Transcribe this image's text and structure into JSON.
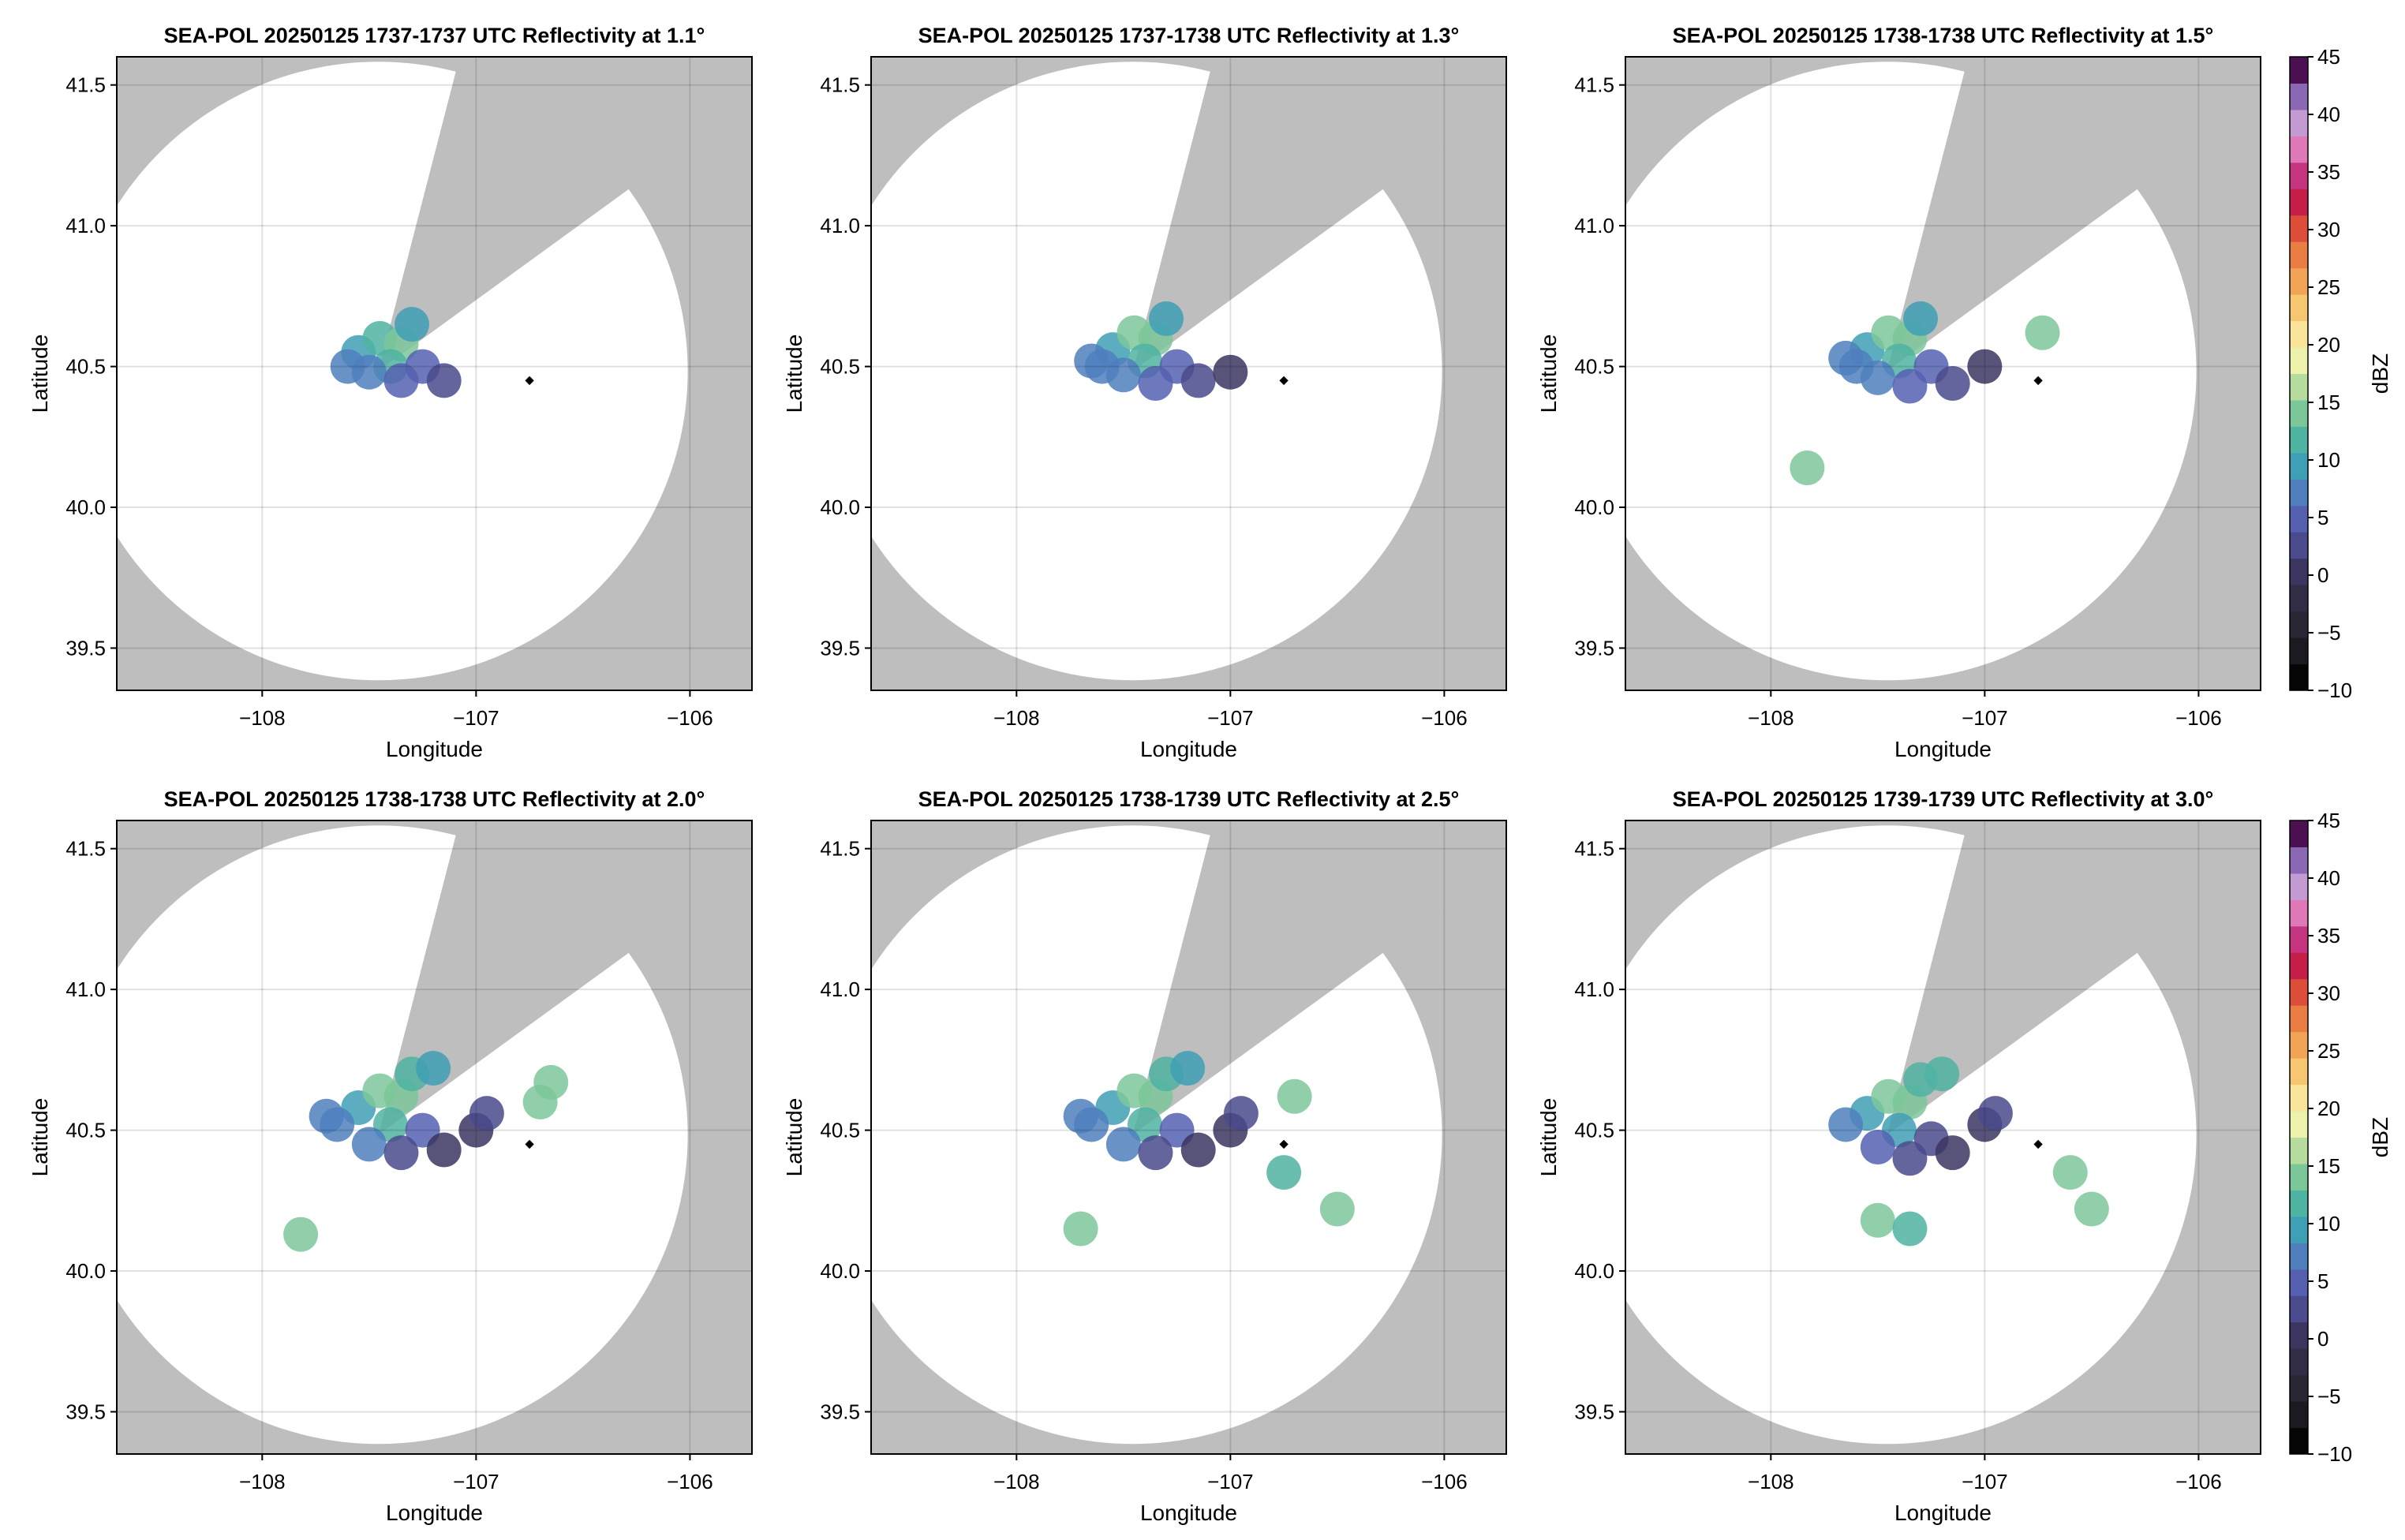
{
  "chart_data": [
    {
      "type": "map",
      "title": "SEA-POL 20250125 1737-1737 UTC Reflectivity at 1.1°",
      "xlabel": "Longitude",
      "ylabel": "Latitude",
      "xlim": [
        -108.68,
        -105.71
      ],
      "ylim": [
        39.35,
        41.6
      ],
      "xticks": [
        {
          "value": -108,
          "label": "−108"
        },
        {
          "value": -107,
          "label": "−107"
        },
        {
          "value": -106,
          "label": "−106"
        }
      ],
      "yticks": [
        39.5,
        {
          "value": 40,
          "label": "40.0"
        },
        40.5,
        {
          "value": 41,
          "label": "41.0"
        },
        41.5
      ],
      "grid": true,
      "echoes": {
        "x": [
          -107.55,
          -107.45,
          -107.35,
          -107.3,
          -107.6,
          -107.4,
          -107.25,
          -107.5,
          -107.35,
          -107.15
        ],
        "y": [
          40.55,
          40.6,
          40.58,
          40.65,
          40.5,
          40.5,
          40.5,
          40.48,
          40.45,
          40.45
        ],
        "values": [
          9,
          12,
          14,
          10,
          8,
          11,
          4,
          7,
          6,
          2
        ]
      },
      "marker": {
        "x": -106.75,
        "y": 40.45
      }
    },
    {
      "type": "map",
      "title": "SEA-POL 20250125 1737-1738 UTC Reflectivity at 1.3°",
      "xlabel": "Longitude",
      "ylabel": "Latitude",
      "xlim": [
        -108.68,
        -105.71
      ],
      "ylim": [
        39.35,
        41.6
      ],
      "xticks": [
        {
          "value": -108,
          "label": "−108"
        },
        {
          "value": -107,
          "label": "−107"
        },
        {
          "value": -106,
          "label": "−106"
        }
      ],
      "yticks": [
        39.5,
        {
          "value": 40,
          "label": "40.0"
        },
        40.5,
        {
          "value": 41,
          "label": "41.0"
        },
        41.5
      ],
      "grid": true,
      "echoes": {
        "x": [
          -107.55,
          -107.45,
          -107.35,
          -107.3,
          -107.6,
          -107.4,
          -107.25,
          -107.5,
          -107.35,
          -107.15,
          -107.65,
          -107.0
        ],
        "y": [
          40.56,
          40.62,
          40.6,
          40.67,
          40.5,
          40.52,
          40.5,
          40.47,
          40.44,
          40.45,
          40.52,
          40.48
        ],
        "values": [
          9,
          13,
          15,
          10,
          8,
          11,
          4,
          7,
          6,
          2,
          8,
          1
        ]
      },
      "marker": {
        "x": -106.75,
        "y": 40.45
      }
    },
    {
      "type": "map",
      "title": "SEA-POL 20250125 1738-1738 UTC Reflectivity at 1.5°",
      "xlabel": "Longitude",
      "ylabel": "Latitude",
      "xlim": [
        -108.68,
        -105.71
      ],
      "ylim": [
        39.35,
        41.6
      ],
      "xticks": [
        {
          "value": -108,
          "label": "−108"
        },
        {
          "value": -107,
          "label": "−107"
        },
        {
          "value": -106,
          "label": "−106"
        }
      ],
      "yticks": [
        39.5,
        {
          "value": 40,
          "label": "40.0"
        },
        40.5,
        {
          "value": 41,
          "label": "41.0"
        },
        41.5
      ],
      "grid": true,
      "echoes": {
        "x": [
          -107.55,
          -107.45,
          -107.35,
          -107.3,
          -107.6,
          -107.4,
          -107.25,
          -107.5,
          -107.35,
          -107.15,
          -107.65,
          -107.0,
          -107.83,
          -106.73
        ],
        "y": [
          40.56,
          40.62,
          40.6,
          40.67,
          40.5,
          40.52,
          40.5,
          40.46,
          40.43,
          40.44,
          40.53,
          40.5,
          40.14,
          40.62
        ],
        "values": [
          9,
          13,
          15,
          10,
          8,
          11,
          4,
          7,
          6,
          2,
          8,
          1,
          14,
          13
        ]
      },
      "marker": {
        "x": -106.75,
        "y": 40.45
      },
      "colorbar": {
        "label": "dBZ",
        "lim": [
          -10,
          45
        ],
        "ticks": [
          {
            "value": -10,
            "label": "−10"
          },
          {
            "value": -5,
            "label": "−5"
          },
          0,
          5,
          10,
          15,
          20,
          25,
          30,
          35,
          40,
          45
        ],
        "colors": [
          "#050505",
          "#1c1a20",
          "#2b2633",
          "#332c47",
          "#3b3560",
          "#4a4a8c",
          "#5560b0",
          "#4f7fbd",
          "#3f9fb5",
          "#4fb3a2",
          "#7cc79a",
          "#b5dc9c",
          "#ecf1ab",
          "#f9e49a",
          "#f6c670",
          "#f1a455",
          "#ea7d44",
          "#dc4d3a",
          "#c61f4a",
          "#c5347e",
          "#df78b6",
          "#c49ad2",
          "#8b68b3",
          "#4a1052"
        ]
      }
    },
    {
      "type": "map",
      "title": "SEA-POL 20250125 1738-1738 UTC Reflectivity at 2.0°",
      "xlabel": "Longitude",
      "ylabel": "Latitude",
      "xlim": [
        -108.68,
        -105.71
      ],
      "ylim": [
        39.35,
        41.6
      ],
      "xticks": [
        {
          "value": -108,
          "label": "−108"
        },
        {
          "value": -107,
          "label": "−107"
        },
        {
          "value": -106,
          "label": "−106"
        }
      ],
      "yticks": [
        39.5,
        {
          "value": 40,
          "label": "40.0"
        },
        40.5,
        {
          "value": 41,
          "label": "41.0"
        },
        41.5
      ],
      "grid": true,
      "echoes": {
        "x": [
          -107.55,
          -107.45,
          -107.35,
          -107.3,
          -107.65,
          -107.4,
          -107.25,
          -107.5,
          -107.35,
          -107.15,
          -107.7,
          -107.2,
          -107.0,
          -106.95,
          -106.7,
          -106.65,
          -107.82
        ],
        "y": [
          40.58,
          40.64,
          40.62,
          40.7,
          40.52,
          40.52,
          40.5,
          40.45,
          40.42,
          40.43,
          40.55,
          40.72,
          40.5,
          40.56,
          40.6,
          40.67,
          40.13
        ],
        "values": [
          9,
          13,
          15,
          11,
          8,
          11,
          4,
          7,
          3,
          1,
          8,
          10,
          1,
          2,
          15,
          13,
          13
        ]
      },
      "marker": {
        "x": -106.75,
        "y": 40.45
      }
    },
    {
      "type": "map",
      "title": "SEA-POL 20250125 1738-1739 UTC Reflectivity at 2.5°",
      "xlabel": "Longitude",
      "ylabel": "Latitude",
      "xlim": [
        -108.68,
        -105.71
      ],
      "ylim": [
        39.35,
        41.6
      ],
      "xticks": [
        {
          "value": -108,
          "label": "−108"
        },
        {
          "value": -107,
          "label": "−107"
        },
        {
          "value": -106,
          "label": "−106"
        }
      ],
      "yticks": [
        39.5,
        {
          "value": 40,
          "label": "40.0"
        },
        40.5,
        {
          "value": 41,
          "label": "41.0"
        },
        41.5
      ],
      "grid": true,
      "echoes": {
        "x": [
          -107.55,
          -107.45,
          -107.35,
          -107.3,
          -107.65,
          -107.4,
          -107.25,
          -107.5,
          -107.35,
          -107.15,
          -107.7,
          -107.2,
          -107.0,
          -106.95,
          -106.7,
          -107.7,
          -106.5,
          -106.75
        ],
        "y": [
          40.58,
          40.64,
          40.62,
          40.7,
          40.52,
          40.52,
          40.5,
          40.45,
          40.42,
          40.43,
          40.55,
          40.72,
          40.5,
          40.56,
          40.62,
          40.15,
          40.22,
          40.35
        ],
        "values": [
          9,
          13,
          15,
          11,
          8,
          11,
          4,
          7,
          3,
          1,
          8,
          10,
          1,
          2,
          15,
          14,
          14,
          11
        ]
      },
      "marker": {
        "x": -106.75,
        "y": 40.45
      }
    },
    {
      "type": "map",
      "title": "SEA-POL 20250125 1739-1739 UTC Reflectivity at 3.0°",
      "xlabel": "Longitude",
      "ylabel": "Latitude",
      "xlim": [
        -108.68,
        -105.71
      ],
      "ylim": [
        39.35,
        41.6
      ],
      "xticks": [
        {
          "value": -108,
          "label": "−108"
        },
        {
          "value": -107,
          "label": "−107"
        },
        {
          "value": -106,
          "label": "−106"
        }
      ],
      "yticks": [
        39.5,
        {
          "value": 40,
          "label": "40.0"
        },
        40.5,
        {
          "value": 41,
          "label": "41.0"
        },
        41.5
      ],
      "grid": true,
      "echoes": {
        "x": [
          -107.55,
          -107.45,
          -107.35,
          -107.3,
          -107.65,
          -107.4,
          -107.25,
          -107.5,
          -107.35,
          -107.15,
          -107.2,
          -107.0,
          -106.95,
          -107.5,
          -107.35,
          -106.6,
          -106.5
        ],
        "y": [
          40.56,
          40.62,
          40.6,
          40.68,
          40.52,
          40.5,
          40.47,
          40.44,
          40.4,
          40.42,
          40.7,
          40.52,
          40.56,
          40.18,
          40.15,
          40.35,
          40.22
        ],
        "values": [
          10,
          13,
          14,
          11,
          8,
          9,
          3,
          6,
          2,
          1,
          11,
          1,
          2,
          13,
          12,
          14,
          15
        ]
      },
      "marker": {
        "x": -106.75,
        "y": 40.45
      },
      "colorbar": {
        "label": "dBZ",
        "lim": [
          -10,
          45
        ],
        "ticks": [
          {
            "value": -10,
            "label": "−10"
          },
          {
            "value": -5,
            "label": "−5"
          },
          0,
          5,
          10,
          15,
          20,
          25,
          30,
          35,
          40,
          45
        ],
        "colors": [
          "#050505",
          "#1c1a20",
          "#2b2633",
          "#332c47",
          "#3b3560",
          "#4a4a8c",
          "#5560b0",
          "#4f7fbd",
          "#3f9fb5",
          "#4fb3a2",
          "#7cc79a",
          "#b5dc9c",
          "#ecf1ab",
          "#f9e49a",
          "#f6c670",
          "#f1a455",
          "#ea7d44",
          "#dc4d3a",
          "#c61f4a",
          "#c5347e",
          "#df78b6",
          "#c49ad2",
          "#8b68b3",
          "#4a1052"
        ]
      }
    }
  ]
}
